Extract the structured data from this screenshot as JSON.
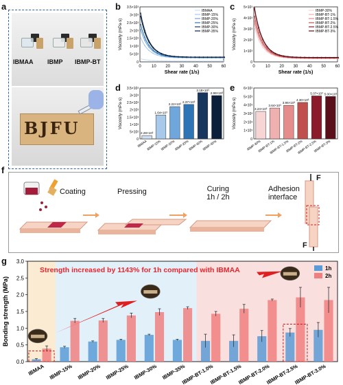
{
  "panel_labels": {
    "a": "a",
    "b": "b",
    "c": "c",
    "d": "d",
    "e": "e",
    "f": "f",
    "g": "g"
  },
  "photos": {
    "vial_labels": [
      "IBMAA",
      "IBMP",
      "IBMP-BT"
    ],
    "board_text": "BJFU"
  },
  "colors": {
    "blue_dark": "#17375e",
    "blue_mid": "#2e75b6",
    "blue_light": "#9dc3e6",
    "red_dark": "#7b1b2a",
    "red_mid": "#c0504d",
    "red_light": "#f4a6a6",
    "bar_1h": "#5b9bd5",
    "bar_2h": "#f08080",
    "arrow_red": "#e02020",
    "annotation_red": "#e8262d"
  },
  "process": {
    "steps": [
      "Coating",
      "Pressing",
      "Curing\n1h / 2h",
      "Adhesion\ninterface"
    ],
    "force_label": "F"
  },
  "annotation": "Strength increased by 1143% for 1h compared with IBMAA",
  "chart_data": [
    {
      "panel": "b",
      "type": "line",
      "xlabel": "Shear rate (1/s)",
      "ylabel": "Viscosity (mPa·s)",
      "xlim": [
        0,
        60
      ],
      "ylim": [
        0,
        3.5
      ],
      "x_ticks": [
        "0",
        "10",
        "20",
        "30",
        "40",
        "50",
        "60"
      ],
      "y_ticks": [
        "0",
        "5×10²",
        "1×10³",
        "1.5×10³",
        "2×10³",
        "2.5×10³",
        "3×10³",
        "3.5×10³"
      ],
      "y_unit": "×10³ mPa·s",
      "legend_position": "top-right",
      "series": [
        {
          "name": "IBMAA",
          "y0": 0.05,
          "amp": 0.15
        },
        {
          "name": "IBMP-15%",
          "y0": 0.25,
          "amp": 1.3
        },
        {
          "name": "IBMP-20%",
          "y0": 0.27,
          "amp": 1.8
        },
        {
          "name": "IBMP-25%",
          "y0": 0.28,
          "amp": 2.1
        },
        {
          "name": "IBMP-30%",
          "y0": 0.3,
          "amp": 2.8
        },
        {
          "name": "IBMP-35%",
          "y0": 0.3,
          "amp": 2.6
        }
      ]
    },
    {
      "panel": "c",
      "type": "line",
      "xlabel": "Shear rate (1/s)",
      "ylabel": "Viscosity (mPa·s)",
      "xlim": [
        0,
        60
      ],
      "ylim": [
        0,
        5
      ],
      "x_ticks": [
        "0",
        "10",
        "20",
        "30",
        "40",
        "50",
        "60"
      ],
      "y_ticks": [
        "0",
        "1×10³",
        "2×10³",
        "3×10³",
        "4×10³",
        "5×10³"
      ],
      "legend_position": "top-right",
      "series": [
        {
          "name": "IBMP-30%",
          "y0": 0.3,
          "amp": 2.8
        },
        {
          "name": "IBMP-BT-1%",
          "y0": 0.32,
          "amp": 3.2
        },
        {
          "name": "IBMP-BT-1.5%",
          "y0": 0.33,
          "amp": 3.4
        },
        {
          "name": "IBMP-BT-2%",
          "y0": 0.35,
          "amp": 3.8
        },
        {
          "name": "IBMP-BT-2.5%",
          "y0": 0.38,
          "amp": 4.4
        },
        {
          "name": "IBMP-BT-3%",
          "y0": 0.4,
          "amp": 4.5
        }
      ]
    },
    {
      "panel": "d",
      "type": "bar",
      "ylabel": "Viscosity (mPa·s)",
      "ylim": [
        0,
        3.5
      ],
      "y_ticks": [
        "0",
        "5×10²",
        "1×10³",
        "1.5×10³",
        "2×10³",
        "2.5×10³",
        "3×10³",
        "3.5×10³"
      ],
      "categories": [
        "IBMAA",
        "IBMP-15%",
        "IBMP-20%",
        "IBMP-25%",
        "IBMP-30%",
        "IBMP-35%"
      ],
      "values": [
        0.228,
        1.64,
        2.22,
        2.37,
        3.18,
        2.98
      ],
      "data_labels": [
        "2.28×10²",
        "1.64×10³",
        "2.22×10³",
        "2.37×10³",
        "3.18×10³",
        "2.98×10³"
      ]
    },
    {
      "panel": "e",
      "type": "bar",
      "ylabel": "Viscosity (mPa·s)",
      "ylim": [
        0,
        6
      ],
      "y_ticks": [
        "0",
        "1×10³",
        "2×10³",
        "3×10³",
        "4×10³",
        "5×10³",
        "6×10³"
      ],
      "categories": [
        "IBMP-30%",
        "IBMP-BT-1%",
        "IBMP-BT-1.5%",
        "IBMP-BT-2%",
        "IBMP-BT-2.5%",
        "IBMP-BT-3%"
      ],
      "values": [
        3.24,
        3.64,
        3.96,
        4.3,
        5.07,
        5.0
      ],
      "data_labels": [
        "3.24×10³",
        "3.64×10³",
        "3.96×10³",
        "4.30×10³",
        "5.07×10³",
        "5.00×10³"
      ]
    },
    {
      "panel": "g",
      "type": "bar",
      "ylabel": "Bonding strength (MPa)",
      "ylim": [
        0,
        3.0
      ],
      "y_ticks": [
        "0.0",
        "0.5",
        "1.0",
        "1.5",
        "2.0",
        "2.5",
        "3.0"
      ],
      "categories": [
        "IBMAA",
        "IBMP-15%",
        "IBMP-20%",
        "IBMP-25%",
        "IBMP-30%",
        "IBMP-35%",
        "IBMP-BT-1.0%",
        "IBMP-BT-1.5%",
        "IBMP-BT-2.0%",
        "IBMP-BT-2.5%",
        "IBMP-BT-3.0%"
      ],
      "legend_position": "top-right",
      "series": [
        {
          "name": "1h",
          "values": [
            0.07,
            0.43,
            0.6,
            0.65,
            0.8,
            0.65,
            0.62,
            0.62,
            0.76,
            0.87,
            0.95
          ],
          "errors": [
            0.02,
            0.03,
            0.02,
            0.02,
            0.02,
            0.02,
            0.2,
            0.18,
            0.17,
            0.12,
            0.22
          ]
        },
        {
          "name": "2h",
          "values": [
            0.39,
            1.22,
            1.23,
            1.38,
            1.48,
            1.6,
            1.43,
            1.58,
            1.84,
            1.92,
            1.84
          ],
          "errors": [
            0.08,
            0.07,
            0.06,
            0.07,
            0.1,
            0.04,
            0.07,
            0.13,
            0.03,
            0.3,
            0.38
          ]
        }
      ]
    }
  ]
}
